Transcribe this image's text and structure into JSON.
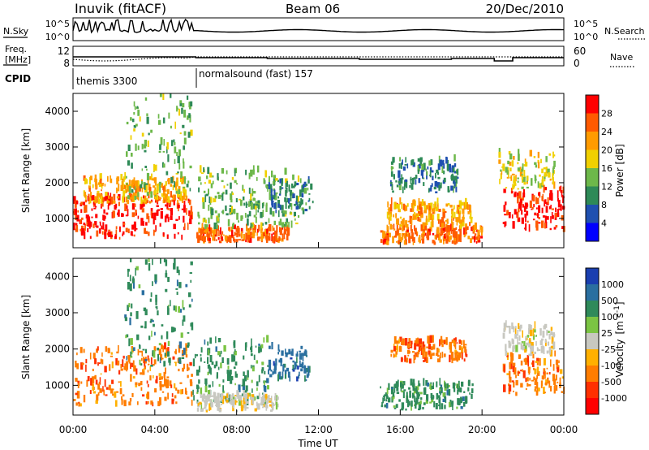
{
  "header": {
    "station": "Inuvik (fitACF)",
    "beam": "Beam 06",
    "date": "20/Dec/2010"
  },
  "chart_data": [
    {
      "type": "line",
      "panel": "noise",
      "left_label": "N.Sky",
      "right_label": "N.Search",
      "left_ticks": [
        "10^5",
        "10^0"
      ],
      "right_ticks": [
        "10^5",
        "10^0"
      ]
    },
    {
      "type": "line",
      "panel": "frequency",
      "left_label_1": "Freq.",
      "left_label_2": "[MHz]",
      "right_label": "Nave",
      "left_ticks": [
        "12",
        "8"
      ],
      "right_ticks": [
        "60",
        "0"
      ]
    },
    {
      "type": "table",
      "panel": "cpid",
      "label": "CPID",
      "segments": [
        {
          "name": "themis 3300",
          "start_hour": 0,
          "end_hour": 6
        },
        {
          "name": "normalsound (fast) 157",
          "start_hour": 6,
          "end_hour": 24
        }
      ]
    },
    {
      "type": "heatmap",
      "panel": "power",
      "ylabel": "Slant Range [km]",
      "ylim": [
        180,
        4500
      ],
      "yticks": [
        1000,
        2000,
        3000,
        4000
      ],
      "xlim": [
        0,
        24
      ],
      "colorbar_label": "Power [dB]",
      "colorbar_levels": [
        "28",
        "24",
        "20",
        "16",
        "12",
        "8",
        "4"
      ],
      "colorbar_colors": [
        "#ff0000",
        "#ff5a00",
        "#ff9b00",
        "#f0d000",
        "#6db84a",
        "#2e8a57",
        "#1f50b0",
        "#0000ff"
      ],
      "blobs": [
        {
          "t0": 0.0,
          "t1": 5.8,
          "r0": 400,
          "r1": 1600,
          "level": 28
        },
        {
          "t0": 0.5,
          "t1": 5.5,
          "r0": 1400,
          "r1": 2100,
          "level": 20
        },
        {
          "t0": 2.5,
          "t1": 5.8,
          "r0": 1500,
          "r1": 4400,
          "level": 12
        },
        {
          "t0": 6.0,
          "t1": 10.5,
          "r0": 300,
          "r1": 700,
          "level": 24
        },
        {
          "t0": 6.0,
          "t1": 11.0,
          "r0": 700,
          "r1": 2300,
          "level": 12
        },
        {
          "t0": 9.5,
          "t1": 11.7,
          "r0": 1000,
          "r1": 2000,
          "level": 8
        },
        {
          "t0": 15.0,
          "t1": 20.0,
          "r0": 250,
          "r1": 700,
          "level": 24
        },
        {
          "t0": 15.3,
          "t1": 19.5,
          "r0": 700,
          "r1": 1400,
          "level": 20
        },
        {
          "t0": 15.5,
          "t1": 18.8,
          "r0": 1700,
          "r1": 2600,
          "level": 8
        },
        {
          "t0": 21.0,
          "t1": 24.0,
          "r0": 600,
          "r1": 1800,
          "level": 28
        },
        {
          "t0": 20.8,
          "t1": 23.5,
          "r0": 1800,
          "r1": 2800,
          "level": 16
        }
      ]
    },
    {
      "type": "heatmap",
      "panel": "velocity",
      "ylabel": "Slant Range [km]",
      "ylim": [
        180,
        4500
      ],
      "yticks": [
        1000,
        2000,
        3000,
        4000
      ],
      "xlim": [
        0,
        24
      ],
      "xlabel": "Time UT",
      "xticks": [
        "00:00",
        "04:00",
        "08:00",
        "12:00",
        "16:00",
        "20:00",
        "00:00"
      ],
      "colorbar_label": "Velocity",
      "colorbar_unit": "[m s",
      "colorbar_unit_exp": "-1",
      "colorbar_unit_end": "]",
      "colorbar_levels": [
        "1000",
        "500",
        "100",
        "25",
        "-25",
        "-100",
        "-500",
        "-1000"
      ],
      "colorbar_colors": [
        "#1a3fb0",
        "#2a6fa0",
        "#2f8a5a",
        "#7bc443",
        "#c8c8c0",
        "#ffb000",
        "#ff7d00",
        "#ff3000",
        "#ff0000"
      ],
      "blobs": [
        {
          "t0": 0.0,
          "t1": 5.8,
          "r0": 400,
          "r1": 2000,
          "level": -500
        },
        {
          "t0": 2.5,
          "t1": 5.8,
          "r0": 1500,
          "r1": 4400,
          "level": 100
        },
        {
          "t0": 5.8,
          "t1": 9.5,
          "r0": 400,
          "r1": 2200,
          "level": 100
        },
        {
          "t0": 9.5,
          "t1": 11.5,
          "r0": 1100,
          "r1": 2000,
          "level": 500
        },
        {
          "t0": 6.0,
          "t1": 10.0,
          "r0": 250,
          "r1": 700,
          "level": -25
        },
        {
          "t0": 15.0,
          "t1": 19.5,
          "r0": 300,
          "r1": 1000,
          "level": 100
        },
        {
          "t0": 15.5,
          "t1": 19.2,
          "r0": 1600,
          "r1": 2200,
          "level": -500
        },
        {
          "t0": 21.0,
          "t1": 24.0,
          "r0": 700,
          "r1": 1800,
          "level": -500
        },
        {
          "t0": 21.0,
          "t1": 23.5,
          "r0": 1800,
          "r1": 2600,
          "level": -25
        }
      ]
    }
  ]
}
